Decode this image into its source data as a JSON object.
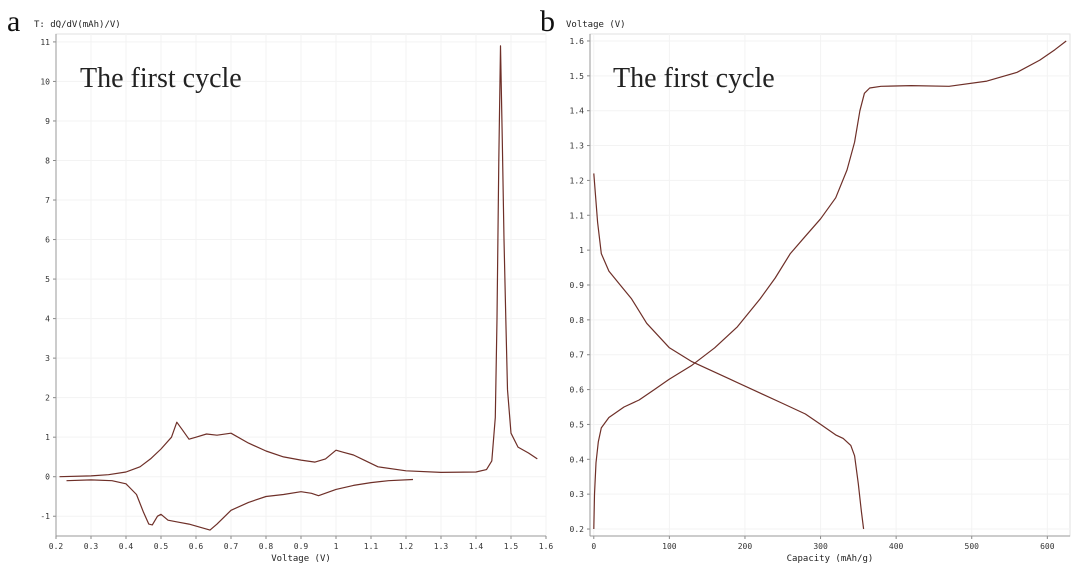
{
  "panels": [
    {
      "letter": "a",
      "title": "The first cycle"
    },
    {
      "letter": "b",
      "title": "The first cycle"
    }
  ],
  "chart_data": [
    {
      "type": "line",
      "title": "The first cycle",
      "xlabel": "Voltage (V)",
      "ylabel": "T: dQ/dV(mAh)/V)",
      "xlim": [
        0.2,
        1.6
      ],
      "ylim": [
        -1.5,
        11.2
      ],
      "xticks": [
        "0.2",
        "0.3",
        "0.4",
        "0.5",
        "0.6",
        "0.7",
        "0.8",
        "0.9",
        "1",
        "1.1",
        "1.2",
        "1.3",
        "1.4",
        "1.5",
        "1.6"
      ],
      "yticks": [
        "-1",
        "0",
        "1",
        "2",
        "3",
        "4",
        "5",
        "6",
        "7",
        "8",
        "9",
        "10",
        "11"
      ],
      "grid": true,
      "series": [
        {
          "color": "#6e2f28",
          "x": [
            0.21,
            0.3,
            0.35,
            0.4,
            0.44,
            0.47,
            0.5,
            0.53,
            0.545,
            0.56,
            0.58,
            0.6,
            0.63,
            0.66,
            0.7,
            0.75,
            0.8,
            0.85,
            0.9,
            0.94,
            0.97,
            1.0,
            1.02,
            1.05,
            1.08,
            1.12,
            1.2,
            1.3,
            1.4,
            1.43,
            1.445,
            1.455,
            1.46,
            1.465,
            1.47,
            1.475,
            1.48,
            1.485,
            1.49,
            1.5,
            1.52,
            1.55,
            1.575
          ],
          "y": [
            0,
            0.02,
            0.05,
            0.12,
            0.25,
            0.45,
            0.7,
            1.0,
            1.38,
            1.2,
            0.95,
            1.0,
            1.08,
            1.05,
            1.1,
            0.85,
            0.65,
            0.5,
            0.42,
            0.37,
            0.45,
            0.67,
            0.62,
            0.55,
            0.42,
            0.25,
            0.15,
            0.11,
            0.12,
            0.18,
            0.4,
            1.5,
            4,
            8,
            10.9,
            8.5,
            6,
            4,
            2.2,
            1.1,
            0.75,
            0.6,
            0.45
          ]
        },
        {
          "color": "#6e2f28",
          "x": [
            0.23,
            0.3,
            0.36,
            0.4,
            0.43,
            0.45,
            0.465,
            0.475,
            0.49,
            0.5,
            0.52,
            0.55,
            0.58,
            0.62,
            0.64,
            0.66,
            0.7,
            0.75,
            0.8,
            0.85,
            0.9,
            0.93,
            0.95,
            1.0,
            1.05,
            1.1,
            1.15,
            1.22
          ],
          "y": [
            -0.1,
            -0.08,
            -0.1,
            -0.18,
            -0.45,
            -0.9,
            -1.2,
            -1.22,
            -1.0,
            -0.95,
            -1.1,
            -1.15,
            -1.2,
            -1.3,
            -1.35,
            -1.2,
            -0.85,
            -0.65,
            -0.5,
            -0.45,
            -0.38,
            -0.42,
            -0.48,
            -0.32,
            -0.22,
            -0.15,
            -0.1,
            -0.07
          ]
        }
      ]
    },
    {
      "type": "line",
      "title": "The first cycle",
      "xlabel": "Capacity (mAh/g)",
      "ylabel": "Voltage (V)",
      "xlim": [
        -5,
        630
      ],
      "ylim": [
        0.18,
        1.62
      ],
      "xticks": [
        "0",
        "100",
        "200",
        "300",
        "400",
        "500",
        "600"
      ],
      "yticks": [
        "0.2",
        "0.3",
        "0.4",
        "0.5",
        "0.6",
        "0.7",
        "0.8",
        "0.9",
        "1",
        "1.1",
        "1.2",
        "1.3",
        "1.4",
        "1.5",
        "1.6"
      ],
      "grid": true,
      "series": [
        {
          "color": "#6e2f28",
          "x": [
            0,
            5,
            10,
            20,
            35,
            50,
            70,
            100,
            130,
            150,
            180,
            220,
            250,
            280,
            300,
            320,
            330,
            340,
            345,
            350,
            354,
            357
          ],
          "y": [
            1.22,
            1.08,
            0.99,
            0.94,
            0.9,
            0.86,
            0.79,
            0.72,
            0.68,
            0.66,
            0.63,
            0.59,
            0.56,
            0.53,
            0.5,
            0.47,
            0.46,
            0.44,
            0.41,
            0.33,
            0.25,
            0.2
          ]
        },
        {
          "color": "#6e2f28",
          "x": [
            0,
            1,
            3,
            6,
            10,
            20,
            40,
            60,
            80,
            100,
            130,
            160,
            190,
            220,
            240,
            260,
            280,
            300,
            320,
            335,
            345,
            352,
            358,
            365,
            380,
            420,
            470,
            520,
            560,
            590,
            610,
            625
          ],
          "y": [
            0.2,
            0.3,
            0.39,
            0.45,
            0.49,
            0.52,
            0.55,
            0.57,
            0.6,
            0.63,
            0.67,
            0.72,
            0.78,
            0.86,
            0.92,
            0.99,
            1.04,
            1.09,
            1.15,
            1.23,
            1.31,
            1.4,
            1.45,
            1.465,
            1.47,
            1.472,
            1.47,
            1.485,
            1.51,
            1.545,
            1.575,
            1.6
          ]
        }
      ]
    }
  ]
}
